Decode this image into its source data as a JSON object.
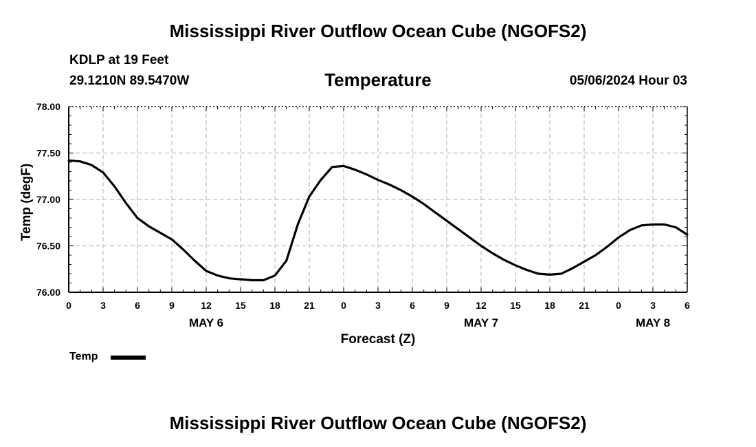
{
  "header": {
    "title": "Mississippi River Outflow Ocean Cube (NGOFS2)",
    "station": "KDLP at 19 Feet",
    "coordinates": "29.1210N  89.5470W",
    "variable": "Temperature",
    "datetime": "05/06/2024 Hour 03"
  },
  "footer": {
    "title": "Mississippi River Outflow Ocean Cube (NGOFS2)"
  },
  "chart_data": {
    "type": "line",
    "title": "Temperature",
    "xlabel": "Forecast (Z)",
    "ylabel": "Temp (degF)",
    "xlim": [
      0,
      54
    ],
    "ylim": [
      76.0,
      78.0
    ],
    "grid": true,
    "legend_position": "bottom-left",
    "x_ticks": [
      0,
      3,
      6,
      9,
      12,
      15,
      18,
      21,
      24,
      27,
      30,
      33,
      36,
      39,
      42,
      45,
      48,
      51,
      54
    ],
    "x_tick_labels": [
      "0",
      "3",
      "6",
      "9",
      "12",
      "15",
      "18",
      "21",
      "0",
      "3",
      "6",
      "9",
      "12",
      "15",
      "18",
      "21",
      "0",
      "3",
      "6"
    ],
    "y_ticks": [
      76.0,
      76.5,
      77.0,
      77.5,
      78.0
    ],
    "y_tick_labels": [
      "76.00",
      "76.50",
      "77.00",
      "77.50",
      "78.00"
    ],
    "day_labels": [
      {
        "label": "MAY 6",
        "x": 12
      },
      {
        "label": "MAY 7",
        "x": 36
      },
      {
        "label": "MAY 8",
        "x": 51
      }
    ],
    "series": [
      {
        "name": "Temp",
        "color": "#000000",
        "x": [
          0,
          1,
          2,
          3,
          4,
          5,
          6,
          7,
          8,
          9,
          10,
          11,
          12,
          13,
          14,
          15,
          16,
          17,
          18,
          19,
          20,
          21,
          22,
          23,
          24,
          25,
          26,
          27,
          28,
          29,
          30,
          31,
          32,
          33,
          34,
          35,
          36,
          37,
          38,
          39,
          40,
          41,
          42,
          43,
          44,
          45,
          46,
          47,
          48,
          49,
          50,
          51,
          52,
          53,
          54
        ],
        "values": [
          77.42,
          77.41,
          77.37,
          77.29,
          77.14,
          76.96,
          76.8,
          76.71,
          76.64,
          76.57,
          76.46,
          76.34,
          76.23,
          76.18,
          76.15,
          76.14,
          76.13,
          76.13,
          76.18,
          76.34,
          76.73,
          77.03,
          77.21,
          77.35,
          77.36,
          77.32,
          77.27,
          77.21,
          77.16,
          77.1,
          77.03,
          76.95,
          76.86,
          76.77,
          76.68,
          76.59,
          76.5,
          76.42,
          76.35,
          76.29,
          76.24,
          76.2,
          76.19,
          76.2,
          76.26,
          76.33,
          76.4,
          76.49,
          76.59,
          76.67,
          76.72,
          76.73,
          76.73,
          76.7,
          76.62
        ]
      }
    ]
  }
}
